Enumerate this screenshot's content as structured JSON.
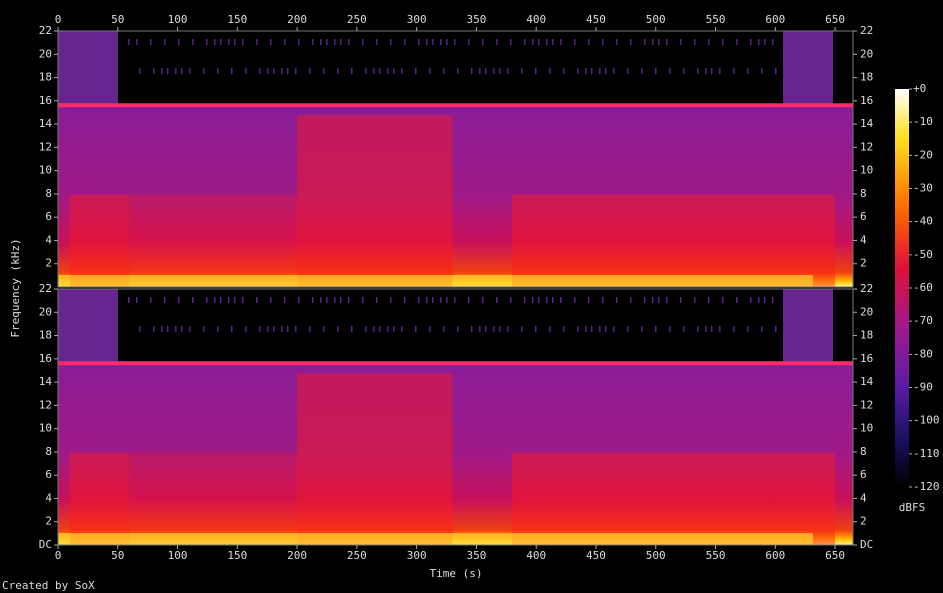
{
  "chart_data": {
    "type": "spectrogram",
    "xlabel": "Time (s)",
    "ylabel": "Frequency (kHz)",
    "footer": "Created by SoX",
    "xlim": [
      0,
      665
    ],
    "xticks": [
      0,
      50,
      100,
      150,
      200,
      250,
      300,
      350,
      400,
      450,
      500,
      550,
      600,
      650
    ],
    "panels": [
      {
        "ylim": [
          0,
          22
        ],
        "yticks": [
          2,
          4,
          6,
          8,
          10,
          12,
          14,
          16,
          18,
          20,
          22
        ]
      },
      {
        "ylim": [
          0,
          22
        ],
        "yticks": [
          {
            "value": 0,
            "label": "DC"
          },
          2,
          4,
          6,
          8,
          10,
          12,
          14,
          16,
          18,
          20,
          22
        ]
      }
    ],
    "colorbar": {
      "label": "dBFS",
      "ylim": [
        -120,
        0
      ],
      "yticks": [
        {
          "value": 0,
          "label": "+0"
        },
        -10,
        -20,
        -30,
        -40,
        -50,
        -60,
        -70,
        -80,
        -90,
        -100,
        -110,
        -120
      ]
    }
  }
}
